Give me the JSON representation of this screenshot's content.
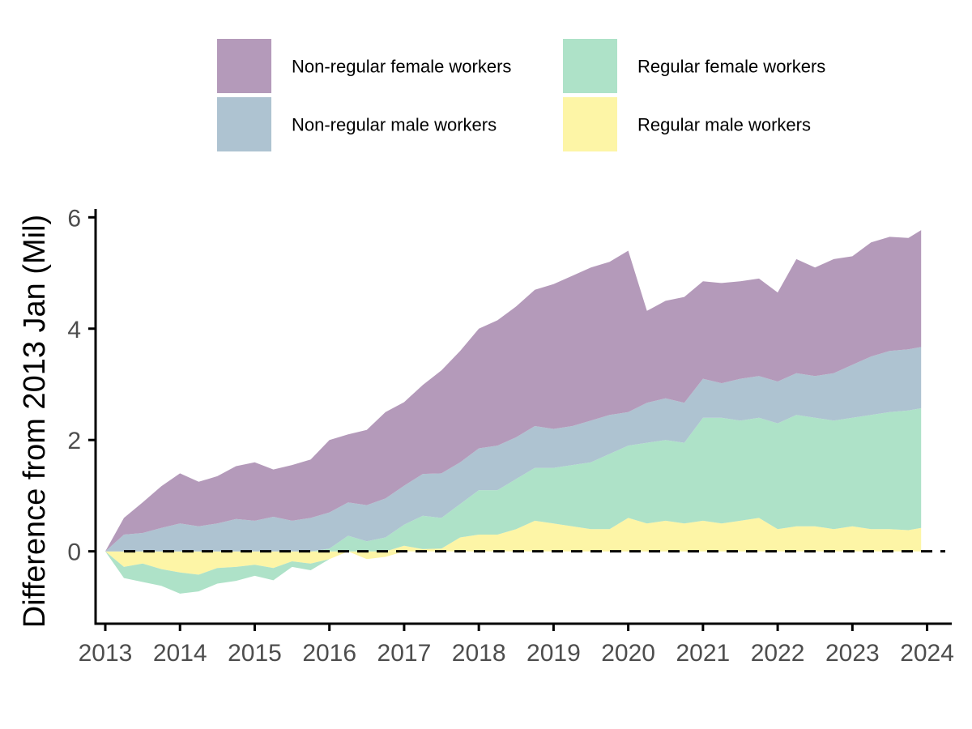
{
  "chart_data": {
    "type": "area",
    "stacking": "positive values stacked upward, negative values stacked downward",
    "title": "",
    "xlabel": "",
    "ylabel": "Difference from 2013 Jan (Mil)",
    "xlim": [
      2012.87,
      2024.33
    ],
    "ylim": [
      -1.3,
      6.15
    ],
    "x_ticks": [
      2013,
      2014,
      2015,
      2016,
      2017,
      2018,
      2019,
      2020,
      2021,
      2022,
      2023,
      2024
    ],
    "x_tick_labels": [
      "2013",
      "2014",
      "2015",
      "2016",
      "2017",
      "2018",
      "2019",
      "2020",
      "2021",
      "2022",
      "2023",
      "2024"
    ],
    "y_ticks": [
      0,
      2,
      4,
      6
    ],
    "y_tick_labels": [
      "0",
      "2",
      "4",
      "6"
    ],
    "reference_line": {
      "y": 0,
      "style": "dashed"
    },
    "grid": false,
    "legend_position": "top",
    "x": [
      2013.0,
      2013.25,
      2013.5,
      2013.75,
      2014.0,
      2014.25,
      2014.5,
      2014.75,
      2015.0,
      2015.25,
      2015.5,
      2015.75,
      2016.0,
      2016.25,
      2016.5,
      2016.75,
      2017.0,
      2017.25,
      2017.5,
      2017.75,
      2018.0,
      2018.25,
      2018.5,
      2018.75,
      2019.0,
      2019.25,
      2019.5,
      2019.75,
      2020.0,
      2020.25,
      2020.5,
      2020.75,
      2021.0,
      2021.25,
      2021.5,
      2021.75,
      2022.0,
      2022.25,
      2022.5,
      2022.75,
      2023.0,
      2023.25,
      2023.5,
      2023.75,
      2023.92
    ],
    "series": [
      {
        "name": "Regular male workers",
        "color": "#fdf5a6",
        "values": [
          0,
          -0.28,
          -0.22,
          -0.32,
          -0.38,
          -0.42,
          -0.3,
          -0.28,
          -0.24,
          -0.3,
          -0.18,
          -0.22,
          -0.14,
          0.0,
          -0.14,
          -0.1,
          0.1,
          0.04,
          0.05,
          0.25,
          0.3,
          0.3,
          0.4,
          0.55,
          0.5,
          0.45,
          0.4,
          0.4,
          0.6,
          0.5,
          0.55,
          0.5,
          0.55,
          0.5,
          0.55,
          0.6,
          0.4,
          0.45,
          0.45,
          0.4,
          0.45,
          0.4,
          0.4,
          0.38,
          0.42
        ]
      },
      {
        "name": "Regular female workers",
        "color": "#aee2c8",
        "values": [
          0,
          -0.2,
          -0.33,
          -0.3,
          -0.38,
          -0.3,
          -0.28,
          -0.25,
          -0.2,
          -0.22,
          -0.1,
          -0.12,
          0.05,
          0.28,
          0.18,
          0.25,
          0.38,
          0.6,
          0.55,
          0.6,
          0.8,
          0.8,
          0.9,
          0.95,
          1.0,
          1.1,
          1.2,
          1.35,
          1.3,
          1.45,
          1.45,
          1.45,
          1.85,
          1.9,
          1.8,
          1.8,
          1.9,
          2.0,
          1.95,
          1.95,
          1.95,
          2.05,
          2.1,
          2.15,
          2.15
        ]
      },
      {
        "name": "Non-regular male workers",
        "color": "#aec3d1",
        "values": [
          0,
          0.3,
          0.33,
          0.42,
          0.5,
          0.45,
          0.5,
          0.58,
          0.55,
          0.62,
          0.55,
          0.6,
          0.65,
          0.6,
          0.65,
          0.7,
          0.7,
          0.75,
          0.8,
          0.75,
          0.75,
          0.8,
          0.75,
          0.75,
          0.7,
          0.7,
          0.75,
          0.7,
          0.6,
          0.72,
          0.75,
          0.72,
          0.7,
          0.62,
          0.75,
          0.75,
          0.75,
          0.75,
          0.75,
          0.85,
          0.95,
          1.05,
          1.1,
          1.1,
          1.1
        ]
      },
      {
        "name": "Non-regular female workers",
        "color": "#b49aba",
        "values": [
          0,
          0.3,
          0.55,
          0.75,
          0.9,
          0.8,
          0.85,
          0.95,
          1.05,
          0.85,
          1.0,
          1.05,
          1.3,
          1.22,
          1.35,
          1.55,
          1.5,
          1.6,
          1.85,
          2.0,
          2.15,
          2.25,
          2.35,
          2.45,
          2.6,
          2.7,
          2.75,
          2.75,
          2.9,
          1.65,
          1.75,
          1.9,
          1.75,
          1.8,
          1.75,
          1.75,
          1.6,
          2.05,
          1.95,
          2.05,
          1.95,
          2.05,
          2.05,
          2.0,
          2.1
        ]
      }
    ],
    "legend_order": [
      "Non-regular female workers",
      "Regular female workers",
      "Non-regular male workers",
      "Regular male workers"
    ]
  }
}
